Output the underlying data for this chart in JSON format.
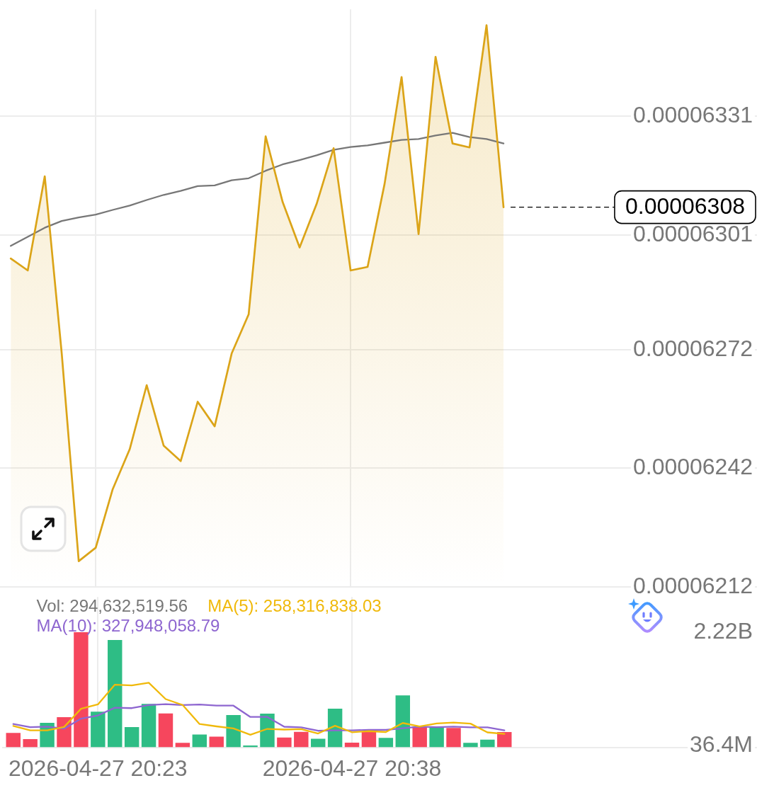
{
  "chart_data": [
    {
      "type": "area",
      "x": [
        "2026-04-27T20:18",
        "2026-04-27T20:19",
        "2026-04-27T20:20",
        "2026-04-27T20:21",
        "2026-04-27T20:22",
        "2026-04-27T20:23",
        "2026-04-27T20:24",
        "2026-04-27T20:25",
        "2026-04-27T20:26",
        "2026-04-27T20:27",
        "2026-04-27T20:28",
        "2026-04-27T20:29",
        "2026-04-27T20:30",
        "2026-04-27T20:31",
        "2026-04-27T20:32",
        "2026-04-27T20:33",
        "2026-04-27T20:34",
        "2026-04-27T20:35",
        "2026-04-27T20:36",
        "2026-04-27T20:37",
        "2026-04-27T20:38",
        "2026-04-27T20:39",
        "2026-04-27T20:40",
        "2026-04-27T20:41",
        "2026-04-27T20:42",
        "2026-04-27T20:43",
        "2026-04-27T20:44",
        "2026-04-27T20:45",
        "2026-04-27T20:46",
        "2026-04-27T20:47"
      ],
      "series": [
        {
          "color": "#dba418",
          "values": [
            6.295e-05,
            6.292e-05,
            6.3158e-05,
            6.271e-05,
            6.2185e-05,
            6.2219e-05,
            6.2367e-05,
            6.2468e-05,
            6.263e-05,
            6.2477e-05,
            6.2438e-05,
            6.2588e-05,
            6.2526e-05,
            6.271e-05,
            6.2809e-05,
            6.3259e-05,
            6.3093e-05,
            6.2978e-05,
            6.3088e-05,
            6.3229e-05,
            6.292e-05,
            6.2929e-05,
            6.3139e-05,
            6.3409e-05,
            6.3012e-05,
            6.346e-05,
            6.3241e-05,
            6.3231e-05,
            6.354e-05,
            6.308e-05
          ]
        },
        {
          "type": "line",
          "color": "#777777",
          "values": [
            6.2982e-05,
            6.3005e-05,
            6.3028e-05,
            6.3045e-05,
            6.3054e-05,
            6.3061e-05,
            6.3073e-05,
            6.3084e-05,
            6.3098e-05,
            6.3111e-05,
            6.3121e-05,
            6.3133e-05,
            6.3135e-05,
            6.3148e-05,
            6.3153e-05,
            6.3172e-05,
            6.3188e-05,
            6.3199e-05,
            6.3211e-05,
            6.3225e-05,
            6.3232e-05,
            6.3236e-05,
            6.3243e-05,
            6.325e-05,
            6.3252e-05,
            6.3261e-05,
            6.3268e-05,
            6.3257e-05,
            6.3252e-05,
            6.3241e-05
          ]
        }
      ],
      "xlim": [
        "2026-04-27T20:17:22",
        "2026-04-27T21:01:55"
      ],
      "xticks": [
        {
          "value": "2026-04-27T20:23",
          "label": null
        },
        {
          "value": "2026-04-27T20:38",
          "label": null
        }
      ],
      "ylim": [
        6.212e-05,
        6.358e-05
      ],
      "yticks": [
        {
          "value": 6.331e-05,
          "label": "0.00006331"
        },
        {
          "value": 6.301e-05,
          "label": "0.00006301"
        },
        {
          "value": 6.272e-05,
          "label": "0.00006272"
        },
        {
          "value": 6.242e-05,
          "label": "0.00006242"
        },
        {
          "value": 6.212e-05,
          "label": "0.00006212"
        }
      ],
      "grid": true,
      "tick_labels": "y",
      "marker": "none",
      "ref_lines": [
        {
          "axis": "y",
          "value": 6.308e-05,
          "label": "0.00006308",
          "line_style": "dashed",
          "color": "#000000"
        }
      ]
    },
    {
      "type": "bar",
      "x": [
        "2026-04-27T20:18",
        "2026-04-27T20:19",
        "2026-04-27T20:20",
        "2026-04-27T20:21",
        "2026-04-27T20:22",
        "2026-04-27T20:23",
        "2026-04-27T20:24",
        "2026-04-27T20:25",
        "2026-04-27T20:26",
        "2026-04-27T20:27",
        "2026-04-27T20:28",
        "2026-04-27T20:29",
        "2026-04-27T20:30",
        "2026-04-27T20:31",
        "2026-04-27T20:32",
        "2026-04-27T20:33",
        "2026-04-27T20:34",
        "2026-04-27T20:35",
        "2026-04-27T20:36",
        "2026-04-27T20:37",
        "2026-04-27T20:38",
        "2026-04-27T20:39",
        "2026-04-27T20:40",
        "2026-04-27T20:41",
        "2026-04-27T20:42",
        "2026-04-27T20:43",
        "2026-04-27T20:44",
        "2026-04-27T20:45",
        "2026-04-27T20:46",
        "2026-04-27T20:47"
      ],
      "series": [
        {
          "colors": [
            "#f6465d",
            "#f6465d",
            "#2ebd85",
            "#f6465d",
            "#f6465d",
            "#2ebd85",
            "#2ebd85",
            "#2ebd85",
            "#2ebd85",
            "#f6465d",
            "#f6465d",
            "#2ebd85",
            "#f6465d",
            "#2ebd85",
            "#2ebd85",
            "#2ebd85",
            "#f6465d",
            "#f6465d",
            "#2ebd85",
            "#2ebd85",
            "#f6465d",
            "#f6465d",
            "#2ebd85",
            "#2ebd85",
            "#f6465d",
            "#2ebd85",
            "#f6465d",
            "#2ebd85",
            "#2ebd85",
            "#f6465d"
          ],
          "values": [
            279000000,
            158000000,
            473000000,
            582000000,
            2220000000,
            688000000,
            2071000000,
            392000000,
            837000000,
            655000000,
            85000000,
            246000000,
            206000000,
            622000000,
            36400000,
            651000000,
            190000000,
            300000000,
            166000000,
            744000000,
            89000000,
            300000000,
            182000000,
            1003000000,
            404000000,
            392000000,
            372000000,
            85000000,
            149000000,
            294632519.56
          ]
        },
        {
          "type": "line",
          "name": "MA(5): 258,316,838.03",
          "color": "#f0b90b",
          "values": [
            412000000,
            328000000,
            328000000,
            392000000,
            744000000,
            829000000,
            1209000000,
            1193000000,
            1246000000,
            930000000,
            817000000,
            449000000,
            404000000,
            364000000,
            243000000,
            356000000,
            343000000,
            352000000,
            267000000,
            416000000,
            291000000,
            312000000,
            295000000,
            469000000,
            404000000,
            461000000,
            477000000,
            457000000,
            288000000,
            258316838.03
          ]
        },
        {
          "type": "line",
          "name": "MA(10): 327,948,058.79",
          "color": "#8e66d0",
          "values": [
            449000000,
            388000000,
            400000000,
            360000000,
            554000000,
            615000000,
            764000000,
            756000000,
            816000000,
            833000000,
            816000000,
            825000000,
            804000000,
            804000000,
            586000000,
            586000000,
            397000000,
            385000000,
            319000000,
            328000000,
            328000000,
            336000000,
            336000000,
            368000000,
            400000000,
            388000000,
            400000000,
            385000000,
            385000000,
            327948058.79
          ]
        }
      ],
      "xlim": [
        "2026-04-27T20:17:22",
        "2026-04-27T21:01:55"
      ],
      "xticks": [
        {
          "value": "2026-04-27T20:23",
          "label": "2026-04-27 20:23"
        },
        {
          "value": "2026-04-27T20:38",
          "label": "2026-04-27 20:38"
        }
      ],
      "ylim": [
        0,
        2900000000
      ],
      "yticks": [
        {
          "value": 2220000000,
          "label": "2.22B"
        },
        {
          "value": 36400000,
          "label": "36.4M"
        }
      ],
      "grid": "x",
      "legend": "top left",
      "marker": "none",
      "annotations": [
        "Vol: 294,632,519.56"
      ]
    }
  ]
}
